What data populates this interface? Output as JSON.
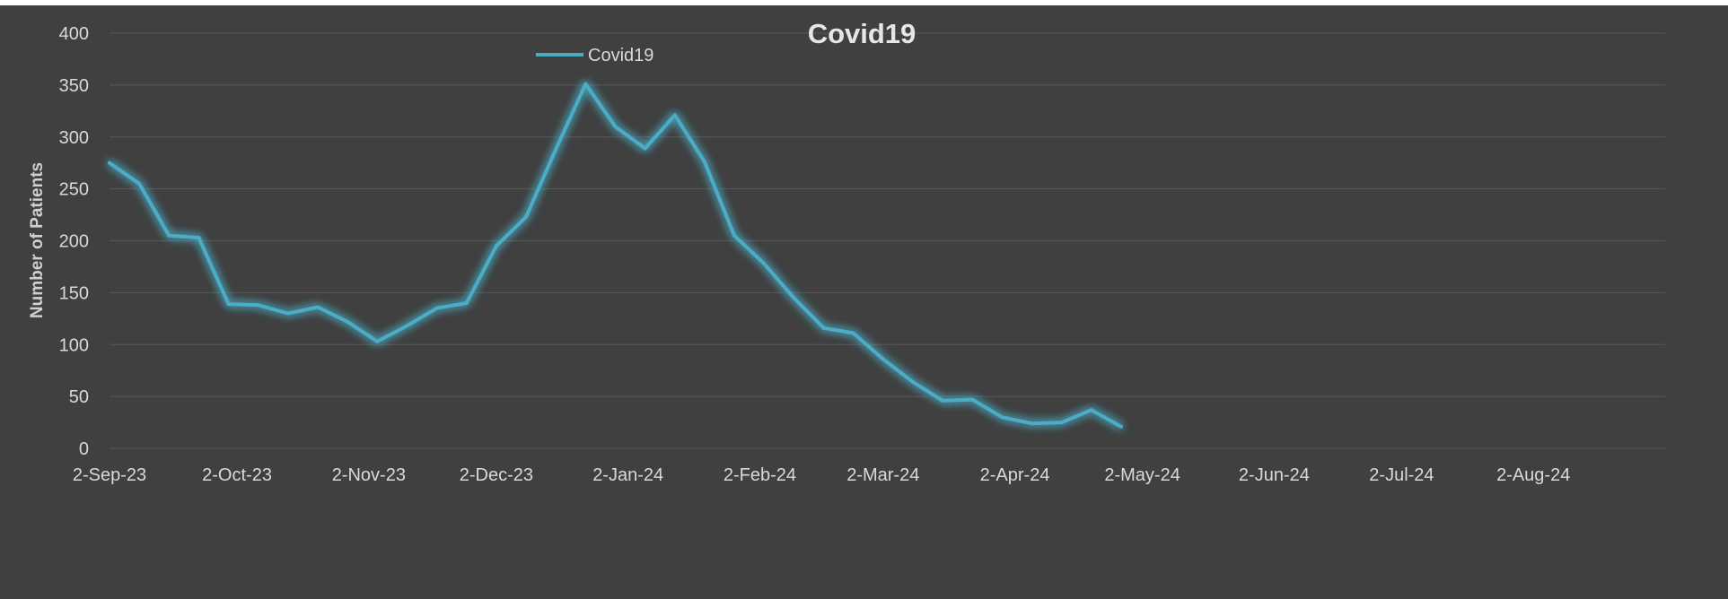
{
  "chart_data": {
    "type": "line",
    "title": "Covid19",
    "xlabel": "",
    "ylabel": "Number of Patients",
    "ylim": [
      0,
      400
    ],
    "y_ticks": [
      0,
      50,
      100,
      150,
      200,
      250,
      300,
      350,
      400
    ],
    "x_ticks": [
      "2-Sep-23",
      "2-Oct-23",
      "2-Nov-23",
      "2-Dec-23",
      "2-Jan-24",
      "2-Feb-24",
      "2-Mar-24",
      "2-Apr-24",
      "2-May-24",
      "2-Jun-24",
      "2-Jul-24",
      "2-Aug-24"
    ],
    "xlim": [
      "2023-09-02",
      "2024-09-02"
    ],
    "grid": true,
    "legend": "top-left",
    "series": [
      {
        "name": "Covid19",
        "color": "#4bacc6",
        "x": [
          "2023-09-02",
          "2023-09-09",
          "2023-09-16",
          "2023-09-23",
          "2023-09-30",
          "2023-10-07",
          "2023-10-14",
          "2023-10-21",
          "2023-10-28",
          "2023-11-04",
          "2023-11-11",
          "2023-11-18",
          "2023-11-25",
          "2023-12-02",
          "2023-12-09",
          "2023-12-16",
          "2023-12-23",
          "2023-12-30",
          "2024-01-06",
          "2024-01-13",
          "2024-01-20",
          "2024-01-27",
          "2024-02-03",
          "2024-02-10",
          "2024-02-17",
          "2024-02-24",
          "2024-03-02",
          "2024-03-09",
          "2024-03-16",
          "2024-03-23",
          "2024-03-30",
          "2024-04-06",
          "2024-04-13",
          "2024-04-20",
          "2024-04-27"
        ],
        "values": [
          275,
          255,
          205,
          203,
          139,
          138,
          130,
          136,
          122,
          103,
          118,
          135,
          140,
          195,
          223,
          288,
          351,
          310,
          289,
          321,
          276,
          205,
          178,
          145,
          116,
          111,
          86,
          64,
          46,
          47,
          30,
          24,
          25,
          37,
          21
        ]
      }
    ]
  },
  "colors": {
    "background": "#404040",
    "gridline": "#595959",
    "line": "#4bacc6"
  }
}
